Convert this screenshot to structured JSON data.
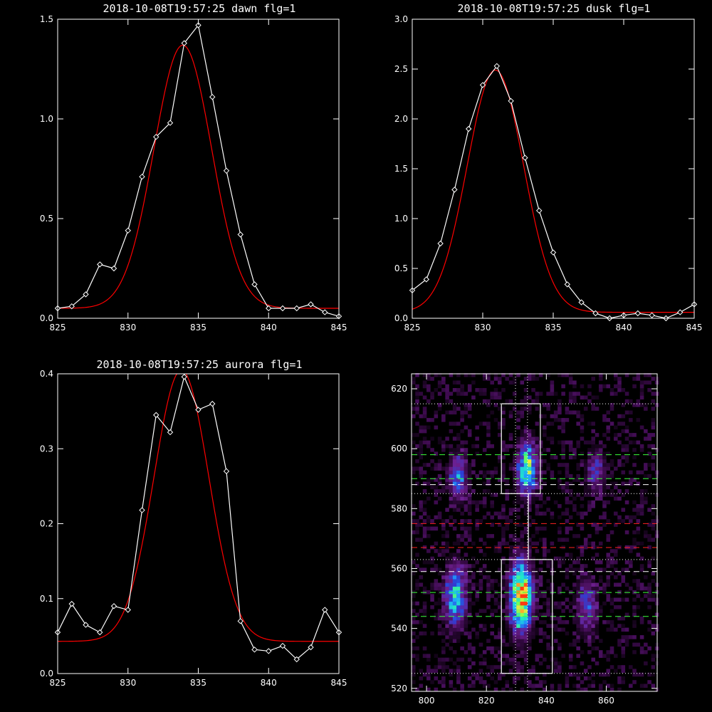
{
  "chart_data": [
    {
      "type": "line",
      "title": "2018-10-08T19:57:25 dawn flg=1",
      "xlim": [
        825,
        845
      ],
      "ylim": [
        0,
        1.5
      ],
      "xticks": [
        825,
        830,
        835,
        840,
        845
      ],
      "yticks": [
        0.0,
        0.5,
        1.0,
        1.5
      ],
      "ytick_labels": [
        "0.0",
        "0.5",
        "1.0",
        "1.5"
      ],
      "colors": {
        "data": "#ffffff",
        "fit": "#ff0000"
      },
      "series": [
        {
          "kind": "data",
          "x": [
            825,
            826,
            827,
            828,
            829,
            830,
            831,
            832,
            833,
            834,
            835,
            836,
            837,
            838,
            839,
            840,
            841,
            842,
            843,
            844,
            845
          ],
          "values": [
            0.05,
            0.06,
            0.12,
            0.27,
            0.25,
            0.44,
            0.71,
            0.91,
            0.98,
            1.38,
            1.47,
            1.11,
            0.74,
            0.42,
            0.17,
            0.05,
            0.05,
            0.05,
            0.07,
            0.03,
            0.01
          ]
        },
        {
          "kind": "fit",
          "amp": 1.32,
          "center": 833.9,
          "sigma": 2.05,
          "base": 0.05
        }
      ]
    },
    {
      "type": "line",
      "title": "2018-10-08T19:57:25 dusk flg=1",
      "xlim": [
        825,
        845
      ],
      "ylim": [
        0,
        3.0
      ],
      "xticks": [
        825,
        830,
        835,
        840,
        845
      ],
      "yticks": [
        0.0,
        0.5,
        1.0,
        1.5,
        2.0,
        2.5,
        3.0
      ],
      "ytick_labels": [
        "0.0",
        "0.5",
        "1.0",
        "1.5",
        "2.0",
        "2.5",
        "3.0"
      ],
      "colors": {
        "data": "#ffffff",
        "fit": "#ff0000"
      },
      "series": [
        {
          "kind": "data",
          "x": [
            825,
            826,
            827,
            828,
            829,
            830,
            831,
            832,
            833,
            834,
            835,
            836,
            837,
            838,
            839,
            840,
            841,
            842,
            843,
            844,
            845
          ],
          "values": [
            0.28,
            0.39,
            0.75,
            1.29,
            1.9,
            2.34,
            2.53,
            2.18,
            1.61,
            1.08,
            0.66,
            0.34,
            0.16,
            0.05,
            0.0,
            0.03,
            0.05,
            0.03,
            0.0,
            0.06,
            0.14
          ]
        },
        {
          "kind": "fit",
          "amp": 2.43,
          "center": 830.9,
          "sigma": 2.0,
          "base": 0.06
        }
      ]
    },
    {
      "type": "line",
      "title": "2018-10-08T19:57:25 aurora flg=1",
      "xlim": [
        825,
        845
      ],
      "ylim": [
        0,
        0.4
      ],
      "xticks": [
        825,
        830,
        835,
        840,
        845
      ],
      "yticks": [
        0.0,
        0.1,
        0.2,
        0.3,
        0.4
      ],
      "ytick_labels": [
        "0.0",
        "0.1",
        "0.2",
        "0.3",
        "0.4"
      ],
      "colors": {
        "data": "#ffffff",
        "fit": "#ff0000"
      },
      "series": [
        {
          "kind": "data",
          "x": [
            825,
            826,
            827,
            828,
            829,
            830,
            831,
            832,
            833,
            834,
            835,
            836,
            837,
            838,
            839,
            840,
            841,
            842,
            843,
            844,
            845
          ],
          "values": [
            0.055,
            0.093,
            0.065,
            0.055,
            0.09,
            0.085,
            0.218,
            0.345,
            0.322,
            0.396,
            0.352,
            0.36,
            0.27,
            0.07,
            0.032,
            0.03,
            0.037,
            0.019,
            0.035,
            0.085,
            0.055
          ]
        },
        {
          "kind": "fit",
          "amp": 0.362,
          "center": 833.8,
          "sigma": 1.95,
          "base": 0.043
        }
      ]
    },
    {
      "type": "heatmap",
      "title": "",
      "xlim": [
        795,
        877
      ],
      "ylim": [
        519,
        625
      ],
      "xticks": [
        800,
        820,
        840,
        860
      ],
      "yticks": [
        520,
        540,
        560,
        580,
        600,
        620
      ],
      "colormap": [
        "#000000",
        "#3a0a4a",
        "#6e1f8f",
        "#2c3fd6",
        "#1fa0ff",
        "#20e6c8",
        "#6cff5a",
        "#ffe23a",
        "#ff3a10"
      ],
      "blobs": [
        {
          "x": 831,
          "y": 550,
          "sx": 2.4,
          "sy": 7.5,
          "amp": 1.0
        },
        {
          "x": 833,
          "y": 593,
          "sx": 2.0,
          "sy": 5.5,
          "amp": 0.72
        },
        {
          "x": 809,
          "y": 550,
          "sx": 2.3,
          "sy": 6.5,
          "amp": 0.55
        },
        {
          "x": 810,
          "y": 590,
          "sx": 2.0,
          "sy": 5.0,
          "amp": 0.4
        },
        {
          "x": 853,
          "y": 547,
          "sx": 2.3,
          "sy": 6.0,
          "amp": 0.3
        },
        {
          "x": 856,
          "y": 592,
          "sx": 2.0,
          "sy": 4.5,
          "amp": 0.28
        }
      ],
      "lines": {
        "vertical_dotted": [
          829.7,
          833.7
        ],
        "horizontal_dotted": [
          615,
          585,
          563,
          525
        ],
        "green_dashed": [
          598,
          590,
          552,
          544
        ],
        "white_dashed": [
          588,
          559
        ],
        "red_dashed": [
          575,
          567
        ],
        "colors": {
          "dotted": "#ffffff",
          "green": "#3aff3a",
          "white": "#ffffff",
          "red": "#ff2020",
          "box": "#ffffff"
        }
      },
      "boxes": [
        {
          "x0": 825,
          "x1": 838,
          "y0": 585,
          "y1": 615
        },
        {
          "x0": 825,
          "x1": 842,
          "y0": 525,
          "y1": 563
        }
      ],
      "connector": [
        [
          834,
          585
        ],
        [
          834,
          563
        ]
      ]
    }
  ]
}
